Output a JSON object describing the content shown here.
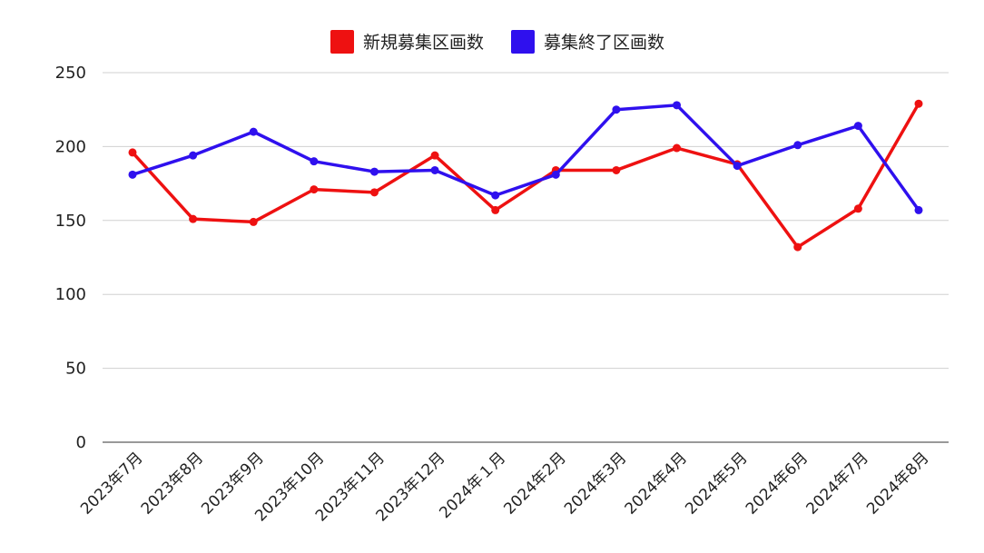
{
  "chart_data": {
    "type": "line",
    "categories": [
      "2023年7月",
      "2023年8月",
      "2023年9月",
      "2023年10月",
      "2023年11月",
      "2023年12月",
      "2024年１月",
      "2024年2月",
      "2024年3月",
      "2024年4月",
      "2024年5月",
      "2024年6月",
      "2024年7月",
      "2024年8月"
    ],
    "series": [
      {
        "name": "新規募集区画数",
        "color": "#ee1111",
        "values": [
          196,
          151,
          149,
          171,
          169,
          194,
          157,
          184,
          184,
          199,
          188,
          132,
          158,
          229
        ]
      },
      {
        "name": "募集終了区画数",
        "color": "#2f10ee",
        "values": [
          181,
          194,
          210,
          190,
          183,
          184,
          167,
          181,
          225,
          228,
          187,
          201,
          214,
          157
        ]
      }
    ],
    "ylim": [
      0,
      250
    ],
    "yticks": [
      "0",
      "50",
      "100",
      "150",
      "200",
      "250"
    ],
    "grid": true,
    "legend": "top-center"
  }
}
